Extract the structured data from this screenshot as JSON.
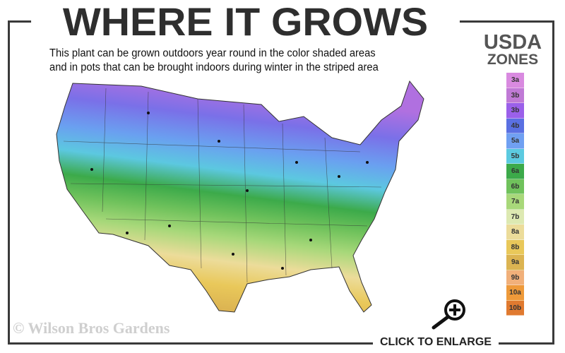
{
  "header": {
    "title": "WHERE IT GROWS",
    "subtitle_line1": "This plant can be grown outdoors year round in the color shaded areas",
    "subtitle_line2": "and in pots that can be brought indoors during winter in the striped area"
  },
  "legend": {
    "title_line1": "USDA",
    "title_line2": "ZONES",
    "zones": [
      {
        "label": "3a",
        "color": "#d98ae0"
      },
      {
        "label": "3b",
        "color": "#c07ad6"
      },
      {
        "label": "3b",
        "color": "#9b60ea"
      },
      {
        "label": "4b",
        "color": "#5a70e2"
      },
      {
        "label": "5a",
        "color": "#70a0f2"
      },
      {
        "label": "5b",
        "color": "#5ccae0"
      },
      {
        "label": "6a",
        "color": "#3caa4a"
      },
      {
        "label": "6b",
        "color": "#70c25c"
      },
      {
        "label": "7a",
        "color": "#a8d87a"
      },
      {
        "label": "7b",
        "color": "#dde9b2"
      },
      {
        "label": "8a",
        "color": "#ecdc9a"
      },
      {
        "label": "8b",
        "color": "#e9c85a"
      },
      {
        "label": "9a",
        "color": "#dcb452"
      },
      {
        "label": "9b",
        "color": "#f1b07a"
      },
      {
        "label": "10a",
        "color": "#ee9a3a"
      },
      {
        "label": "10b",
        "color": "#e07a30"
      }
    ]
  },
  "footer": {
    "copyright": "© Wilson Bros Gardens",
    "enlarge_label": "CLICK TO ENLARGE"
  },
  "icons": {
    "enlarge": "magnifier-plus-icon"
  }
}
